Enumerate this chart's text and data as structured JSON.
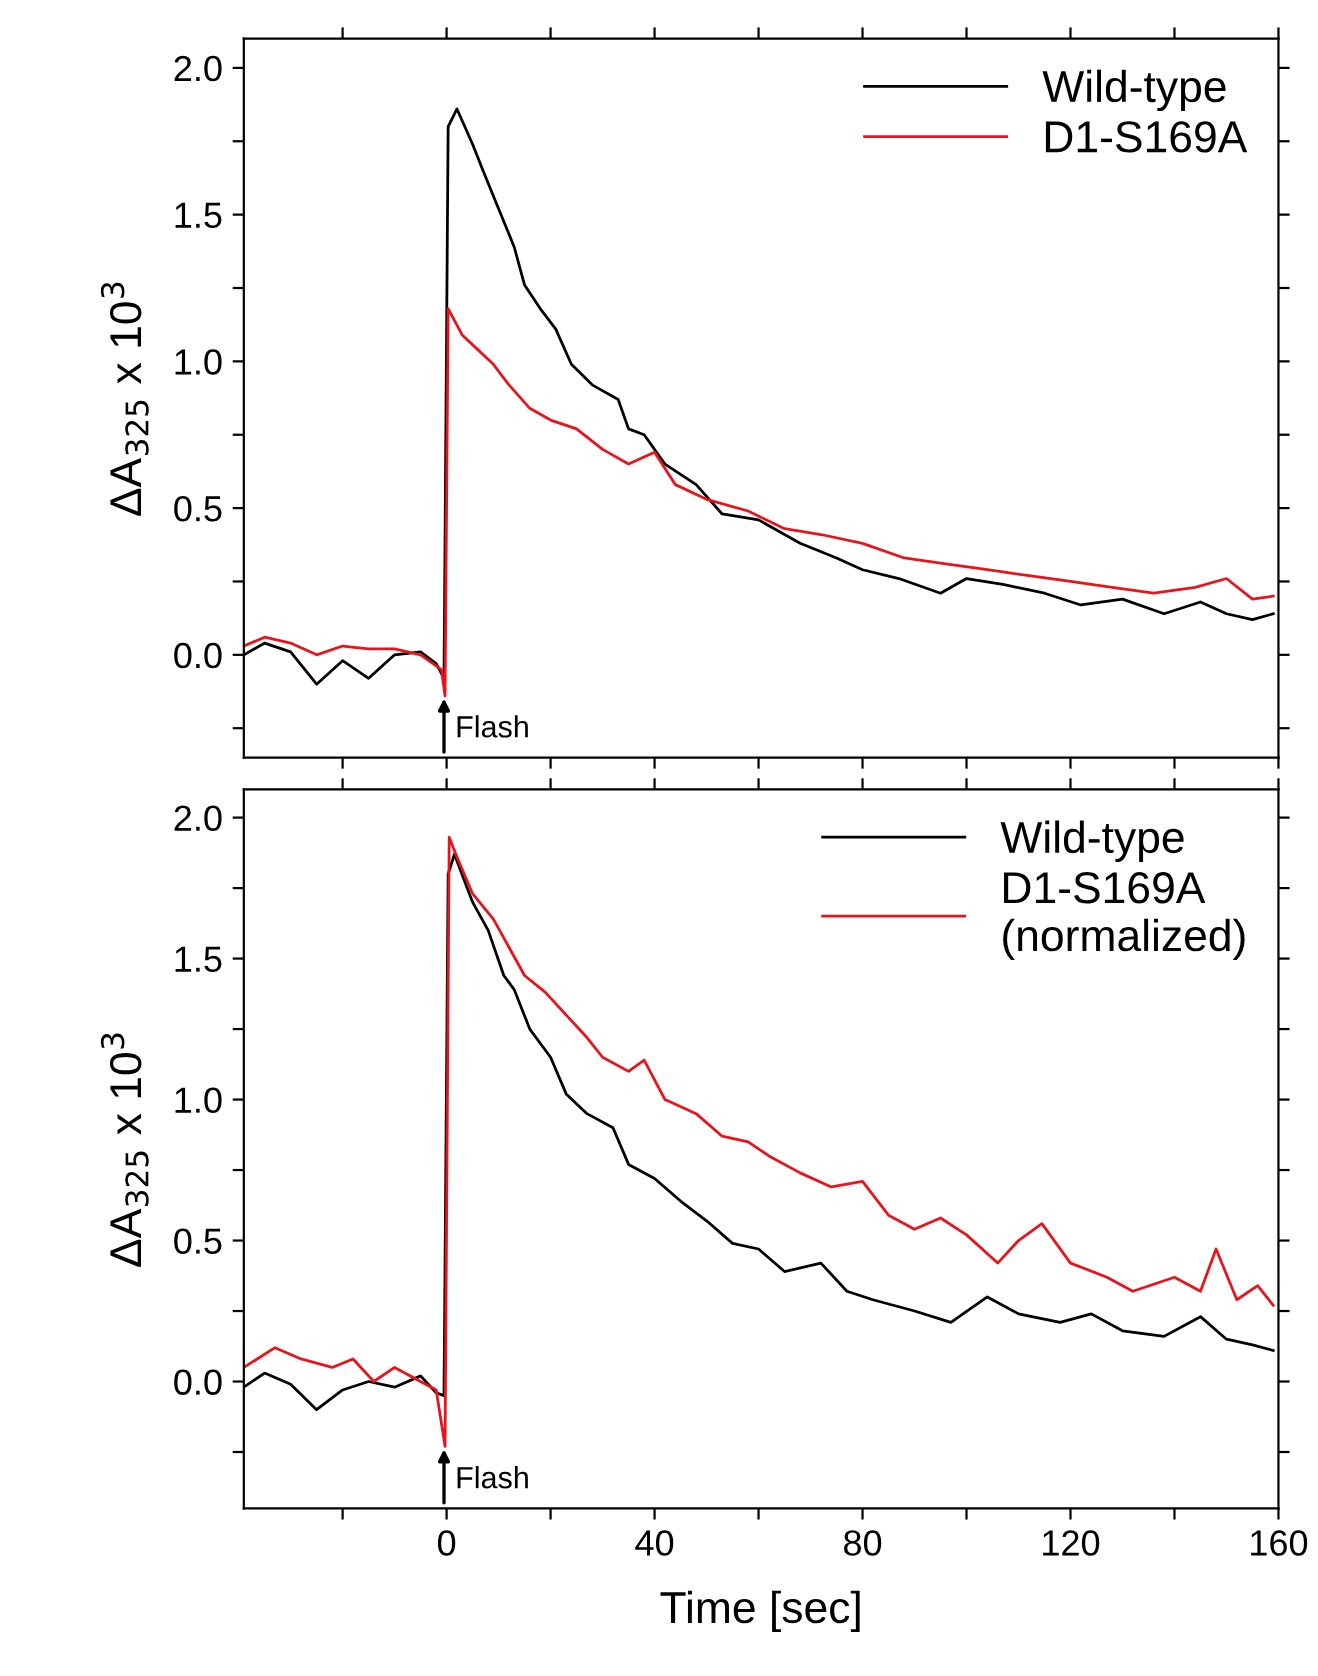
{
  "chart_data": [
    {
      "type": "line",
      "xlim": [
        -39,
        160
      ],
      "xticks": [
        {
          "value": -20,
          "label": null
        },
        {
          "value": 0,
          "label": null
        },
        {
          "value": 20,
          "label": null
        },
        {
          "value": 40,
          "label": null
        },
        {
          "value": 60,
          "label": null
        },
        {
          "value": 80,
          "label": null
        },
        {
          "value": 100,
          "label": null
        },
        {
          "value": 120,
          "label": null
        },
        {
          "value": 140,
          "label": null
        },
        {
          "value": 160,
          "label": null
        }
      ],
      "ylim": [
        -0.35,
        2.1
      ],
      "yticks": [
        {
          "value": -0.25,
          "label": null
        },
        {
          "value": 0,
          "label": "0.0"
        },
        {
          "value": 0.25,
          "label": null
        },
        {
          "value": 0.5,
          "label": "0.5"
        },
        {
          "value": 0.75,
          "label": null
        },
        {
          "value": 1,
          "label": "1.0"
        },
        {
          "value": 1.25,
          "label": null
        },
        {
          "value": 1.5,
          "label": "1.5"
        },
        {
          "value": 1.75,
          "label": null
        },
        {
          "value": 2,
          "label": "2.0"
        }
      ],
      "tick_labels": "y",
      "ylabel": "ΔA$_{325}$ x 10$^{3}$",
      "legend": "top right",
      "grid": false,
      "marker": "none",
      "line_style": "solid",
      "annotations": [
        "Flash"
      ],
      "series": [
        {
          "name": "Wild-type",
          "color": "#000000",
          "x": [
            -39,
            -35,
            -30,
            -25,
            -20,
            -15,
            -10,
            -5,
            -2,
            -0.5,
            0.3,
            2,
            5,
            7,
            10,
            13,
            15,
            18,
            21,
            24,
            28,
            33,
            35,
            38,
            42,
            48,
            53,
            60,
            68,
            75,
            80,
            87,
            95,
            100,
            107,
            115,
            122,
            130,
            138,
            145,
            150,
            155,
            159
          ],
          "values": [
            0.0,
            0.04,
            0.01,
            -0.1,
            -0.02,
            -0.08,
            0.0,
            0.01,
            -0.03,
            -0.08,
            1.8,
            1.86,
            1.74,
            1.65,
            1.52,
            1.39,
            1.26,
            1.18,
            1.11,
            0.99,
            0.92,
            0.87,
            0.77,
            0.75,
            0.65,
            0.58,
            0.48,
            0.46,
            0.38,
            0.33,
            0.29,
            0.26,
            0.21,
            0.26,
            0.24,
            0.21,
            0.17,
            0.19,
            0.14,
            0.18,
            0.14,
            0.12,
            0.14
          ]
        },
        {
          "name": "D1-S169A",
          "color": "#e8141c",
          "x": [
            -39,
            -35,
            -30,
            -25,
            -20,
            -15,
            -10,
            -5,
            -1,
            -0.3,
            0.3,
            3,
            6,
            9,
            12,
            16,
            20,
            25,
            30,
            35,
            40,
            44,
            50,
            58,
            65,
            72,
            80,
            88,
            96,
            104,
            112,
            120,
            128,
            136,
            144,
            150,
            155,
            159
          ],
          "values": [
            0.03,
            0.06,
            0.04,
            0.0,
            0.03,
            0.02,
            0.02,
            0.0,
            -0.05,
            -0.14,
            1.18,
            1.09,
            1.04,
            0.99,
            0.92,
            0.84,
            0.8,
            0.77,
            0.7,
            0.65,
            0.69,
            0.58,
            0.53,
            0.49,
            0.43,
            0.41,
            0.38,
            0.33,
            0.31,
            0.29,
            0.27,
            0.25,
            0.23,
            0.21,
            0.23,
            0.26,
            0.19,
            0.2
          ]
        }
      ]
    },
    {
      "type": "line",
      "xlim": [
        -39,
        160
      ],
      "xticks": [
        {
          "value": -20,
          "label": null
        },
        0,
        {
          "value": 20,
          "label": null
        },
        40,
        {
          "value": 60,
          "label": null
        },
        80,
        {
          "value": 100,
          "label": null
        },
        120,
        {
          "value": 140,
          "label": null
        },
        160
      ],
      "ylim": [
        -0.45,
        2.1
      ],
      "yticks": [
        {
          "value": -0.25,
          "label": null
        },
        {
          "value": 0,
          "label": "0.0"
        },
        {
          "value": 0.25,
          "label": null
        },
        {
          "value": 0.5,
          "label": "0.5"
        },
        {
          "value": 0.75,
          "label": null
        },
        {
          "value": 1,
          "label": "1.0"
        },
        {
          "value": 1.25,
          "label": null
        },
        {
          "value": 1.5,
          "label": "1.5"
        },
        {
          "value": 1.75,
          "label": null
        },
        {
          "value": 2,
          "label": "2.0"
        }
      ],
      "xlabel": "Time [sec]",
      "ylabel": "ΔA$_{325}$ x 10$^{3}$",
      "legend": "top right",
      "grid": false,
      "marker": "none",
      "line_style": "solid",
      "annotations": [
        "Flash"
      ],
      "series": [
        {
          "name": "Wild-type",
          "color": "#000000",
          "x": [
            -39,
            -35,
            -30,
            -25,
            -20,
            -15,
            -10,
            -5,
            -2,
            -0.5,
            0.3,
            1.5,
            5,
            8,
            11,
            13,
            16,
            20,
            23,
            27,
            32,
            35,
            40,
            45,
            50,
            55,
            60,
            65,
            72,
            77,
            82,
            90,
            97,
            104,
            110,
            118,
            124,
            130,
            138,
            145,
            150,
            155,
            159
          ],
          "values": [
            -0.02,
            0.03,
            -0.01,
            -0.1,
            -0.03,
            0.0,
            -0.02,
            0.02,
            -0.04,
            -0.05,
            1.8,
            1.87,
            1.7,
            1.6,
            1.44,
            1.39,
            1.25,
            1.15,
            1.02,
            0.95,
            0.9,
            0.77,
            0.72,
            0.64,
            0.57,
            0.49,
            0.47,
            0.39,
            0.42,
            0.32,
            0.29,
            0.25,
            0.21,
            0.3,
            0.24,
            0.21,
            0.24,
            0.18,
            0.16,
            0.23,
            0.15,
            0.13,
            0.11
          ]
        },
        {
          "name": "D1-S169A\n(normalized)",
          "color": "#e8141c",
          "x": [
            -39,
            -33,
            -28,
            -22,
            -18,
            -14,
            -10,
            -5,
            -2,
            -0.3,
            0.5,
            2,
            5,
            9,
            12,
            15,
            19,
            23,
            27,
            30,
            35,
            38,
            42,
            48,
            53,
            58,
            62,
            68,
            74,
            80,
            85,
            90,
            95,
            100,
            106,
            110,
            114.5,
            120,
            127,
            132,
            140,
            145,
            148,
            152,
            156,
            159
          ],
          "values": [
            0.05,
            0.12,
            0.08,
            0.05,
            0.08,
            0.0,
            0.05,
            0.0,
            -0.03,
            -0.23,
            1.93,
            1.86,
            1.73,
            1.64,
            1.54,
            1.44,
            1.38,
            1.3,
            1.22,
            1.15,
            1.1,
            1.14,
            1.0,
            0.95,
            0.87,
            0.85,
            0.8,
            0.74,
            0.69,
            0.71,
            0.59,
            0.54,
            0.58,
            0.52,
            0.42,
            0.5,
            0.56,
            0.42,
            0.37,
            0.32,
            0.37,
            0.32,
            0.47,
            0.29,
            0.34,
            0.27
          ]
        }
      ]
    }
  ]
}
